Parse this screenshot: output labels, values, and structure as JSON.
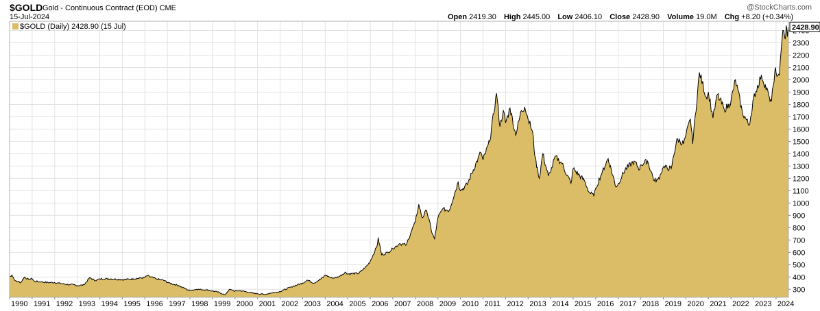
{
  "header": {
    "symbol": "$GOLD",
    "description": "Gold - Continuous Contract (EOD)",
    "exchange": "CME",
    "date": "15-Jul-2024",
    "copyright": "@StockCharts.com",
    "open_label": "Open",
    "open": "2419.30",
    "high_label": "High",
    "high": "2445.00",
    "low_label": "Low",
    "low": "2406.10",
    "close_label": "Close",
    "close": "2428.90",
    "volume_label": "Volume",
    "volume": "19.0M",
    "chg_label": "Chg",
    "chg": "+8.20 (+0.34%)"
  },
  "legend": {
    "text": "$GOLD (Daily) 2428.90 (15 Jul)"
  },
  "last_value_label": "2428.90",
  "colors": {
    "fill": "#dbbd67",
    "line": "#000000",
    "grid": "#e2e2e2"
  },
  "chart_data": {
    "type": "area",
    "title": "$GOLD Gold - Continuous Contract (EOD)",
    "xlabel": "",
    "ylabel": "",
    "xlim": [
      1990.0,
      2024.55
    ],
    "ylim": [
      235,
      2475
    ],
    "grid": true,
    "legend_position": "top-left",
    "y_ticks": [
      300,
      400,
      500,
      600,
      700,
      800,
      900,
      1000,
      1100,
      1200,
      1300,
      1400,
      1500,
      1600,
      1700,
      1800,
      1900,
      2000,
      2100,
      2200,
      2300,
      2400
    ],
    "x_ticks": [
      1990,
      1991,
      1992,
      1993,
      1994,
      1995,
      1996,
      1997,
      1998,
      1999,
      2000,
      2001,
      2002,
      2003,
      2004,
      2005,
      2006,
      2007,
      2008,
      2009,
      2010,
      2011,
      2012,
      2013,
      2014,
      2015,
      2016,
      2017,
      2018,
      2019,
      2020,
      2021,
      2022,
      2023,
      2024
    ],
    "series": [
      {
        "values": [
          [
            1990.0,
            400
          ],
          [
            1990.1,
            415
          ],
          [
            1990.25,
            370
          ],
          [
            1990.5,
            355
          ],
          [
            1990.65,
            400
          ],
          [
            1990.85,
            380
          ],
          [
            1991.0,
            385
          ],
          [
            1991.1,
            365
          ],
          [
            1991.4,
            360
          ],
          [
            1991.7,
            355
          ],
          [
            1992.0,
            355
          ],
          [
            1992.5,
            340
          ],
          [
            1992.9,
            335
          ],
          [
            1993.0,
            330
          ],
          [
            1993.3,
            335
          ],
          [
            1993.55,
            395
          ],
          [
            1993.8,
            370
          ],
          [
            1994.0,
            385
          ],
          [
            1994.5,
            385
          ],
          [
            1994.9,
            380
          ],
          [
            1995.0,
            378
          ],
          [
            1995.5,
            385
          ],
          [
            1996.0,
            395
          ],
          [
            1996.1,
            410
          ],
          [
            1996.5,
            385
          ],
          [
            1996.9,
            370
          ],
          [
            1997.0,
            355
          ],
          [
            1997.5,
            330
          ],
          [
            1997.9,
            295
          ],
          [
            1998.0,
            290
          ],
          [
            1998.3,
            300
          ],
          [
            1998.7,
            295
          ],
          [
            1999.0,
            287
          ],
          [
            1999.3,
            275
          ],
          [
            1999.55,
            255
          ],
          [
            1999.75,
            300
          ],
          [
            1999.9,
            290
          ],
          [
            2000.0,
            285
          ],
          [
            2000.2,
            290
          ],
          [
            2000.5,
            280
          ],
          [
            2000.9,
            265
          ],
          [
            2001.0,
            265
          ],
          [
            2001.3,
            258
          ],
          [
            2001.6,
            270
          ],
          [
            2001.9,
            278
          ],
          [
            2002.0,
            282
          ],
          [
            2002.5,
            320
          ],
          [
            2002.9,
            345
          ],
          [
            2003.0,
            350
          ],
          [
            2003.2,
            375
          ],
          [
            2003.5,
            350
          ],
          [
            2003.9,
            395
          ],
          [
            2004.0,
            415
          ],
          [
            2004.3,
            390
          ],
          [
            2004.6,
            400
          ],
          [
            2004.9,
            440
          ],
          [
            2005.0,
            425
          ],
          [
            2005.5,
            430
          ],
          [
            2005.9,
            500
          ],
          [
            2006.0,
            530
          ],
          [
            2006.3,
            650
          ],
          [
            2006.35,
            720
          ],
          [
            2006.5,
            580
          ],
          [
            2006.8,
            600
          ],
          [
            2007.0,
            630
          ],
          [
            2007.3,
            670
          ],
          [
            2007.6,
            660
          ],
          [
            2007.8,
            760
          ],
          [
            2008.0,
            850
          ],
          [
            2008.15,
            990
          ],
          [
            2008.3,
            880
          ],
          [
            2008.5,
            940
          ],
          [
            2008.75,
            750
          ],
          [
            2008.85,
            710
          ],
          [
            2009.0,
            880
          ],
          [
            2009.2,
            950
          ],
          [
            2009.5,
            940
          ],
          [
            2009.9,
            1170
          ],
          [
            2010.0,
            1100
          ],
          [
            2010.3,
            1150
          ],
          [
            2010.5,
            1240
          ],
          [
            2010.9,
            1410
          ],
          [
            2011.0,
            1350
          ],
          [
            2011.3,
            1500
          ],
          [
            2011.6,
            1890
          ],
          [
            2011.75,
            1620
          ],
          [
            2011.9,
            1750
          ],
          [
            2012.0,
            1650
          ],
          [
            2012.2,
            1770
          ],
          [
            2012.45,
            1550
          ],
          [
            2012.7,
            1750
          ],
          [
            2012.85,
            1780
          ],
          [
            2013.0,
            1680
          ],
          [
            2013.2,
            1580
          ],
          [
            2013.3,
            1380
          ],
          [
            2013.5,
            1200
          ],
          [
            2013.65,
            1400
          ],
          [
            2013.9,
            1220
          ],
          [
            2014.0,
            1250
          ],
          [
            2014.2,
            1380
          ],
          [
            2014.5,
            1320
          ],
          [
            2014.9,
            1160
          ],
          [
            2015.0,
            1280
          ],
          [
            2015.5,
            1180
          ],
          [
            2015.7,
            1090
          ],
          [
            2015.92,
            1055
          ],
          [
            2016.0,
            1120
          ],
          [
            2016.3,
            1260
          ],
          [
            2016.55,
            1360
          ],
          [
            2016.9,
            1130
          ],
          [
            2017.0,
            1160
          ],
          [
            2017.3,
            1270
          ],
          [
            2017.7,
            1340
          ],
          [
            2017.95,
            1270
          ],
          [
            2018.0,
            1310
          ],
          [
            2018.3,
            1340
          ],
          [
            2018.6,
            1180
          ],
          [
            2018.75,
            1190
          ],
          [
            2018.9,
            1240
          ],
          [
            2019.0,
            1290
          ],
          [
            2019.35,
            1280
          ],
          [
            2019.6,
            1520
          ],
          [
            2019.9,
            1480
          ],
          [
            2020.0,
            1550
          ],
          [
            2020.2,
            1680
          ],
          [
            2020.3,
            1480
          ],
          [
            2020.6,
            2060
          ],
          [
            2020.9,
            1860
          ],
          [
            2021.0,
            1900
          ],
          [
            2021.2,
            1690
          ],
          [
            2021.4,
            1880
          ],
          [
            2021.7,
            1760
          ],
          [
            2021.95,
            1800
          ],
          [
            2022.0,
            1830
          ],
          [
            2022.2,
            2000
          ],
          [
            2022.5,
            1740
          ],
          [
            2022.8,
            1630
          ],
          [
            2022.95,
            1780
          ],
          [
            2023.0,
            1850
          ],
          [
            2023.35,
            2040
          ],
          [
            2023.7,
            1860
          ],
          [
            2023.8,
            1830
          ],
          [
            2023.95,
            2080
          ],
          [
            2024.0,
            2060
          ],
          [
            2024.15,
            2040
          ],
          [
            2024.3,
            2400
          ],
          [
            2024.4,
            2330
          ],
          [
            2024.45,
            2440
          ],
          [
            2024.5,
            2350
          ],
          [
            2024.54,
            2428.9
          ]
        ]
      }
    ]
  }
}
